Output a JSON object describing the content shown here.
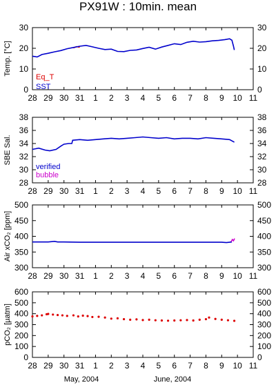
{
  "title": "PX91W : 10min. mean",
  "x_axis": {
    "tick_labels": [
      "28",
      "29",
      "30",
      "31",
      "1",
      "2",
      "3",
      "4",
      "5",
      "6",
      "7",
      "8",
      "9",
      "10",
      "11"
    ],
    "footer_left": "May, 2004",
    "footer_right": "June, 2004"
  },
  "chart_data": [
    {
      "type": "line",
      "ylabel_html": "Temp. [°C]",
      "ylim": [
        0,
        30
      ],
      "yticks": [
        0,
        10,
        20,
        30
      ],
      "x_unit": "day index from May 28, 2004 (0 = May 28 00:00, 4 = June 1)",
      "series": [
        {
          "name": "Eq_T",
          "color": "#dd0000",
          "x": [
            2.6,
            2.8,
            3.0
          ],
          "y": [
            20.2,
            20.8,
            20.5
          ]
        },
        {
          "name": "SST",
          "color": "#0000cc",
          "x": [
            0.0,
            0.3,
            0.6,
            1.0,
            1.4,
            1.8,
            2.2,
            2.6,
            3.0,
            3.4,
            3.8,
            4.2,
            4.6,
            5.0,
            5.4,
            5.8,
            6.2,
            6.6,
            7.0,
            7.4,
            7.8,
            8.2,
            8.6,
            9.0,
            9.4,
            9.8,
            10.2,
            10.6,
            11.0,
            11.4,
            11.8,
            12.2,
            12.5,
            12.65,
            12.75,
            12.8
          ],
          "y": [
            16.2,
            15.8,
            17.0,
            17.6,
            18.3,
            18.9,
            19.8,
            20.4,
            21.0,
            21.4,
            20.7,
            20.0,
            19.4,
            19.6,
            18.5,
            18.4,
            19.0,
            19.2,
            19.9,
            20.5,
            19.6,
            20.6,
            21.4,
            22.2,
            21.8,
            22.9,
            23.4,
            23.0,
            23.2,
            23.6,
            23.8,
            24.2,
            24.6,
            23.9,
            21.0,
            19.2
          ]
        }
      ]
    },
    {
      "type": "line",
      "ylabel_html": "SBE Sal.",
      "ylim": [
        28,
        38
      ],
      "yticks": [
        28,
        30,
        32,
        34,
        36,
        38
      ],
      "x_unit": "day index from May 28, 2004",
      "series": [
        {
          "name": "verified",
          "color": "#0000cc",
          "x": [
            0.0,
            0.4,
            0.8,
            1.1,
            1.5,
            1.8,
            2.0,
            2.3,
            2.5,
            2.55,
            3.0,
            3.5,
            4.0,
            4.5,
            5.0,
            5.5,
            6.0,
            6.5,
            7.0,
            7.5,
            8.0,
            8.5,
            9.0,
            9.5,
            10.0,
            10.5,
            11.0,
            11.5,
            12.0,
            12.5,
            12.8
          ],
          "y": [
            33.1,
            33.3,
            33.0,
            32.9,
            33.1,
            33.6,
            33.9,
            34.0,
            34.0,
            34.5,
            34.6,
            34.5,
            34.6,
            34.7,
            34.8,
            34.7,
            34.8,
            34.9,
            35.0,
            34.9,
            34.8,
            34.9,
            34.7,
            34.8,
            34.8,
            34.7,
            34.9,
            34.8,
            34.7,
            34.6,
            34.2
          ]
        },
        {
          "name": "bubble",
          "color": "#cc00cc",
          "x": [],
          "y": []
        }
      ]
    },
    {
      "type": "line",
      "ylabel_html": "Air xCO₂ [ppm]",
      "ylim": [
        300,
        500
      ],
      "yticks": [
        300,
        350,
        400,
        450,
        500
      ],
      "x_unit": "day index from May 28, 2004",
      "series": [
        {
          "name": "",
          "color": "#0000cc",
          "x": [
            0.0,
            1.0,
            1.4,
            1.6,
            2.0,
            3.0,
            4.0,
            5.0,
            6.0,
            7.0,
            8.0,
            9.0,
            10.0,
            11.0,
            12.0,
            12.3,
            12.5,
            12.65
          ],
          "y": [
            382,
            382,
            384,
            382,
            382,
            381,
            381,
            381,
            381,
            381,
            381,
            381,
            381,
            381,
            381,
            380,
            381,
            382
          ]
        },
        {
          "name": "",
          "color": "#cc00cc",
          "x": [
            12.6,
            12.68,
            12.75,
            12.82
          ],
          "y": [
            383,
            390,
            386,
            393
          ]
        }
      ]
    },
    {
      "type": "scatter",
      "ylabel_html": "pCO₂ [µatm]",
      "ylim": [
        0,
        600
      ],
      "yticks": [
        0,
        100,
        200,
        300,
        400,
        500,
        600
      ],
      "x_unit": "day index from May 28, 2004",
      "series": [
        {
          "name": "",
          "color": "#dd0000",
          "x": [
            0.0,
            0.3,
            0.6,
            0.9,
            1.0,
            1.3,
            1.6,
            1.9,
            2.2,
            2.6,
            2.9,
            3.2,
            3.5,
            3.8,
            4.2,
            4.6,
            5.0,
            5.4,
            5.8,
            6.2,
            6.6,
            7.0,
            7.4,
            7.8,
            8.2,
            8.6,
            9.0,
            9.4,
            9.8,
            10.2,
            10.6,
            11.0,
            11.2,
            11.6,
            12.0,
            12.4,
            12.8
          ],
          "y": [
            375,
            380,
            385,
            395,
            398,
            392,
            388,
            385,
            380,
            385,
            375,
            382,
            378,
            370,
            372,
            365,
            355,
            358,
            350,
            345,
            348,
            342,
            345,
            340,
            338,
            336,
            338,
            340,
            342,
            338,
            345,
            350,
            365,
            352,
            345,
            340,
            335
          ]
        }
      ]
    }
  ],
  "legends": {
    "panel1": [
      "Eq_T",
      "SST"
    ],
    "panel2": [
      "verified",
      "bubble"
    ]
  }
}
